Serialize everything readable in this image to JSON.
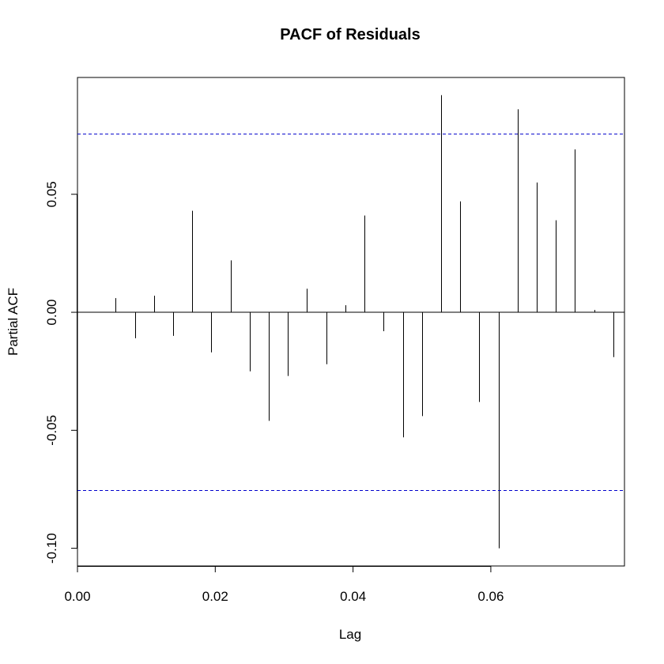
{
  "chart_data": {
    "type": "bar",
    "title": "PACF of Residuals",
    "xlabel": "Lag",
    "ylabel": "Partial ACF",
    "xlim": [
      0,
      0.0794
    ],
    "ylim": [
      -0.1075,
      0.0995
    ],
    "x_ticks": [
      0,
      0.02,
      0.04,
      0.06
    ],
    "x_tick_labels": [
      "0.00",
      "0.02",
      "0.04",
      "0.06"
    ],
    "y_ticks": [
      -0.1,
      -0.05,
      0,
      0.05
    ],
    "y_tick_labels": [
      "-0.10",
      "-0.05",
      "0.00",
      "0.05"
    ],
    "zero_line": 0,
    "confidence_bounds": [
      0.0755,
      -0.0755
    ],
    "confidence_color": "#0000cc",
    "bar_color": "#000000",
    "grid": false,
    "x": [
      0.00556,
      0.00833,
      0.01111,
      0.01389,
      0.01667,
      0.01944,
      0.02222,
      0.025,
      0.02778,
      0.03056,
      0.03333,
      0.03611,
      0.03889,
      0.04167,
      0.04444,
      0.04722,
      0.05,
      0.05278,
      0.05556,
      0.05833,
      0.06111,
      0.06389,
      0.06667,
      0.06944,
      0.07222,
      0.075,
      0.07778
    ],
    "values": [
      0.006,
      -0.011,
      0.007,
      -0.01,
      0.043,
      -0.017,
      0.022,
      -0.025,
      -0.046,
      -0.027,
      0.01,
      -0.022,
      0.003,
      0.041,
      -0.008,
      -0.053,
      -0.044,
      0.092,
      0.047,
      -0.038,
      -0.1,
      0.086,
      0.055,
      0.039,
      0.069,
      0.001,
      -0.019
    ]
  }
}
